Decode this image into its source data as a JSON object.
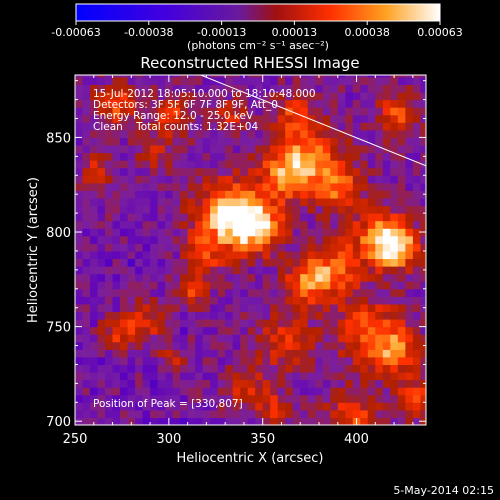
{
  "colorbar": {
    "tick_labels": [
      "-0.00063",
      "-0.00038",
      "-0.00013",
      "0.00013",
      "0.00038",
      "0.00063"
    ],
    "units_label": "(photons cm⁻² s⁻¹ asec⁻²)"
  },
  "annotations": {
    "time_range": "15-Jul-2012 18:05:10.000 to 18:10:48.000",
    "detectors": "Detectors: 3F 5F 6F 7F 8F 9F, Att_0",
    "energy_range": "Energy Range: 12.0 - 25.0 keV",
    "counts": "Clean    Total counts: 1.32E+04",
    "peak": "Position of Peak = [330,807]"
  },
  "footer": {
    "timestamp": "5-May-2014 02:15"
  },
  "chart_data": {
    "type": "heatmap",
    "title": "Reconstructed RHESSI Image",
    "xlabel": "Heliocentric X (arcsec)",
    "ylabel": "Heliocentric Y (arcsec)",
    "xlim": [
      250,
      437
    ],
    "ylim": [
      698,
      883
    ],
    "x_ticks": [
      250,
      300,
      350,
      400
    ],
    "y_ticks": [
      700,
      750,
      800,
      850
    ],
    "colorbar_range": [
      -0.00063,
      0.00063
    ],
    "peak_position": [
      330,
      807
    ],
    "limb_line": [
      [
        317,
        883
      ],
      [
        437,
        835
      ]
    ],
    "colormap_stops": [
      "#0000ff",
      "#5a00c0",
      "#7a1fa0",
      "#b02000",
      "#ff3000",
      "#ffa020",
      "#ffffff"
    ],
    "grid": false
  }
}
